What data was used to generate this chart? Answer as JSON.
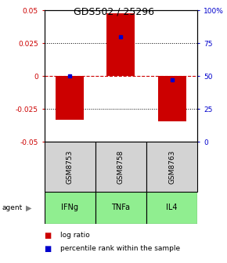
{
  "title": "GDS502 / 25296",
  "samples": [
    "GSM8753",
    "GSM8758",
    "GSM8763"
  ],
  "agents": [
    "IFNg",
    "TNFa",
    "IL4"
  ],
  "log_ratios": [
    -0.033,
    0.048,
    -0.034
  ],
  "percentile_ranks": [
    50.5,
    80.0,
    47.0
  ],
  "ylim_left": [
    -0.05,
    0.05
  ],
  "ylim_right": [
    0,
    100
  ],
  "yticks_left": [
    -0.05,
    -0.025,
    0,
    0.025,
    0.05
  ],
  "yticks_right": [
    0,
    25,
    50,
    75,
    100
  ],
  "ytick_labels_left": [
    "-0.05",
    "-0.025",
    "0",
    "0.025",
    "0.05"
  ],
  "ytick_labels_right": [
    "0",
    "25",
    "50",
    "75",
    "100%"
  ],
  "bar_color": "#cc0000",
  "dot_color": "#0000cc",
  "zero_line_color": "#cc0000",
  "grid_color": "#000000",
  "sample_box_color": "#d3d3d3",
  "agent_box_color": "#90ee90",
  "bar_width": 0.55,
  "legend_log_ratio_color": "#cc0000",
  "legend_percentile_color": "#0000cc",
  "background_color": "#ffffff"
}
